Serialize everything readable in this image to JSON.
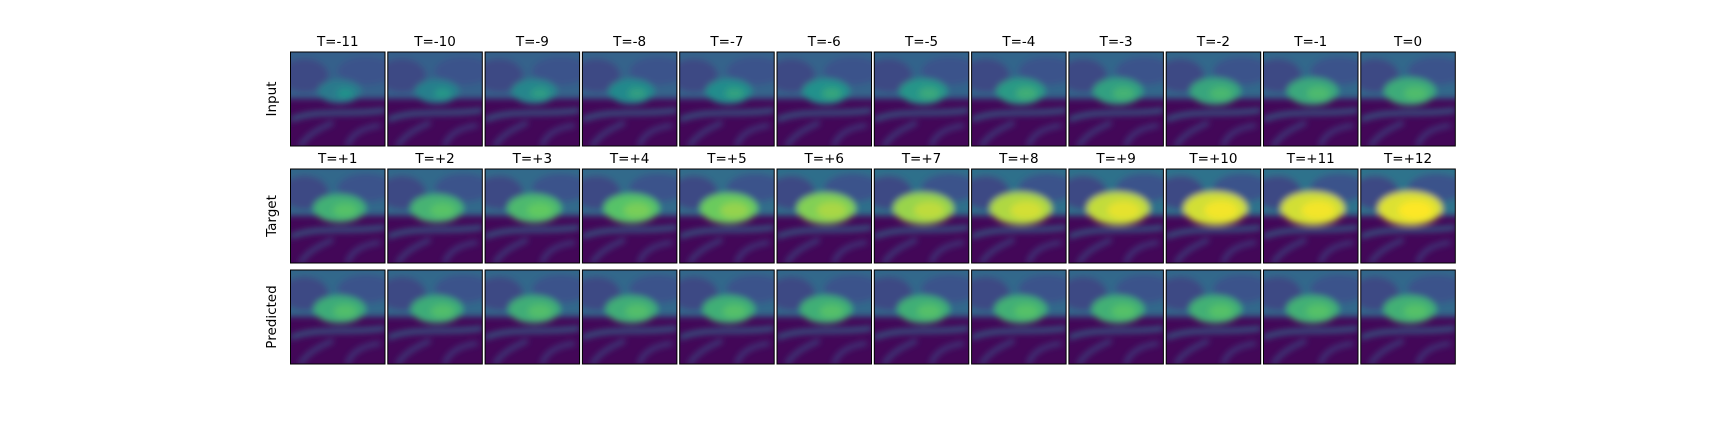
{
  "chart_data": {
    "type": "heatmap",
    "colormap": "viridis",
    "grid": false,
    "rows": [
      {
        "label": "Input",
        "titles": [
          "T=-11",
          "T=-10",
          "T=-9",
          "T=-8",
          "T=-7",
          "T=-6",
          "T=-5",
          "T=-4",
          "T=-3",
          "T=-2",
          "T=-1",
          "T=0"
        ],
        "intensity": [
          0.1,
          0.13,
          0.18,
          0.2,
          0.22,
          0.25,
          0.28,
          0.32,
          0.36,
          0.4,
          0.42,
          0.44
        ]
      },
      {
        "label": "Target",
        "titles": [
          "T=+1",
          "T=+2",
          "T=+3",
          "T=+4",
          "T=+5",
          "T=+6",
          "T=+7",
          "T=+8",
          "T=+9",
          "T=+10",
          "T=+11",
          "T=+12"
        ],
        "intensity": [
          0.48,
          0.5,
          0.55,
          0.62,
          0.7,
          0.76,
          0.82,
          0.88,
          0.93,
          0.97,
          0.97,
          1.0
        ]
      },
      {
        "label": "Predicted",
        "titles": [
          "",
          "",
          "",
          "",
          "",
          "",
          "",
          "",
          "",
          "",
          "",
          ""
        ],
        "intensity": [
          0.45,
          0.45,
          0.46,
          0.46,
          0.47,
          0.47,
          0.47,
          0.48,
          0.48,
          0.48,
          0.48,
          0.48
        ]
      }
    ]
  }
}
